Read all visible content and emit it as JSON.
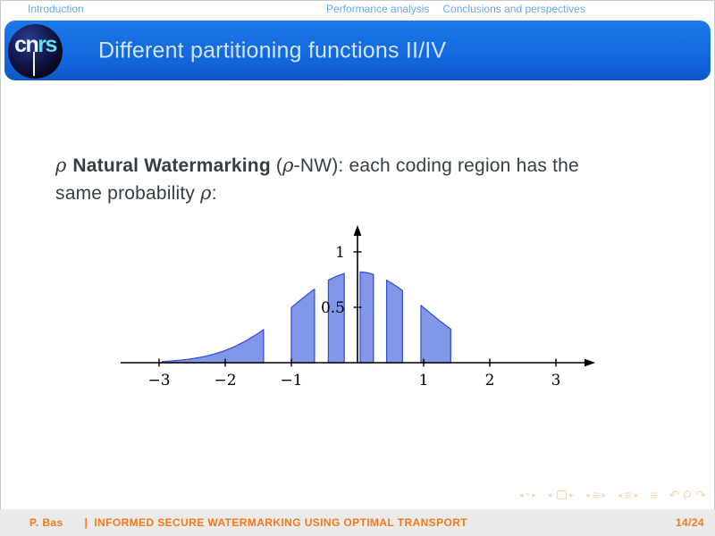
{
  "header": {
    "nav_left": "Introduction",
    "nav_right": [
      "Performance analysis",
      "Conclusions and perspectives"
    ]
  },
  "titlebar": {
    "title": "Different partitioning functions II/IV",
    "logo_parts": [
      "cn",
      "rs"
    ]
  },
  "body": {
    "lines": [
      [
        {
          "t": "ρ ",
          "s": "math"
        },
        {
          "t": "Natural Watermarking",
          "s": "bold"
        },
        {
          "t": " (",
          "s": "plain"
        },
        {
          "t": "ρ",
          "s": "math"
        },
        {
          "t": "-NW): each coding region has the",
          "s": "plain"
        }
      ],
      [
        {
          "t": "same probability ",
          "s": "plain"
        },
        {
          "t": "ρ",
          "s": "math"
        },
        {
          "t": ":",
          "s": "plain"
        }
      ]
    ]
  },
  "chart_data": {
    "type": "area",
    "title": "",
    "xlabel": "",
    "ylabel": "",
    "description": "Gaussian pdf partitioned into coding regions of equal probability; alternating regions shaded blue",
    "curve": {
      "kind": "gaussian",
      "mean": 0,
      "sigma": 1.0,
      "peak": 0.82
    },
    "curve_points": [
      [
        -3,
        0.009
      ],
      [
        -2.5,
        0.036
      ],
      [
        -2,
        0.111
      ],
      [
        -1.5,
        0.266
      ],
      [
        -1,
        0.497
      ],
      [
        -0.5,
        0.724
      ],
      [
        0,
        0.82
      ],
      [
        0.5,
        0.724
      ],
      [
        1,
        0.497
      ],
      [
        1.5,
        0.266
      ],
      [
        2,
        0.111
      ],
      [
        2.5,
        0.036
      ],
      [
        3,
        0.009
      ]
    ],
    "shaded_regions": [
      [
        -2.95,
        -1.42
      ],
      [
        -1.0,
        -0.65
      ],
      [
        -0.44,
        -0.2
      ],
      [
        0.04,
        0.24
      ],
      [
        0.44,
        0.68
      ],
      [
        0.96,
        1.41
      ]
    ],
    "region_edge_heights": [
      [
        0.011,
        0.3
      ],
      [
        0.5,
        0.66
      ],
      [
        0.74,
        0.8
      ],
      [
        0.82,
        0.8
      ],
      [
        0.75,
        0.65
      ],
      [
        0.52,
        0.3
      ]
    ],
    "x_ticks": [
      -3,
      -2,
      -1,
      1,
      2,
      3
    ],
    "y_ticks": [
      0.5,
      1
    ],
    "xlim": [
      -3.55,
      3.55
    ],
    "ylim": [
      0,
      1.25
    ],
    "grid": false,
    "legend": false,
    "fill_color": "#8397e9",
    "stroke_color": "#3a50d4",
    "axis_color": "#000000"
  },
  "nav_symbols": {
    "groups": [
      {
        "name": "slide-nav",
        "items": [
          {
            "icon": "prev-triangle-icon",
            "glyph": "◂"
          },
          {
            "icon": "slide-icon",
            "glyph": "▫"
          },
          {
            "icon": "next-triangle-icon",
            "glyph": "▸"
          }
        ]
      },
      {
        "name": "frame-nav",
        "items": [
          {
            "icon": "prev-triangle-icon",
            "glyph": "◂"
          },
          {
            "icon": "frame-icon",
            "glyph": "",
            "cls": "icon-frame"
          },
          {
            "icon": "next-triangle-icon",
            "glyph": "▸"
          }
        ]
      },
      {
        "name": "section-nav",
        "items": [
          {
            "icon": "prev-triangle-icon",
            "glyph": "◂"
          },
          {
            "icon": "section-icon",
            "glyph": "≡"
          },
          {
            "icon": "next-triangle-icon",
            "glyph": "▸"
          }
        ]
      },
      {
        "name": "subsection-nav",
        "items": [
          {
            "icon": "prev-triangle-icon",
            "glyph": "◂"
          },
          {
            "icon": "subsection-icon",
            "glyph": "≡"
          },
          {
            "icon": "next-triangle-icon",
            "glyph": "▸"
          }
        ]
      },
      {
        "name": "appendix-nav",
        "items": [
          {
            "icon": "appendix-icon",
            "glyph": "≡"
          }
        ]
      },
      {
        "name": "history-nav",
        "items": [
          {
            "icon": "back-arrow-icon",
            "glyph": "↶"
          },
          {
            "icon": "search-icon",
            "glyph": "",
            "cls": "icon-magnifier"
          },
          {
            "icon": "forward-arrow-icon",
            "glyph": "↷"
          }
        ]
      }
    ]
  },
  "footer": {
    "author": "P. Bas",
    "separator": "|",
    "title": "INFORMED SECURE WATERMARKING USING OPTIMAL TRANSPORT",
    "page": "14/24"
  },
  "colors": {
    "titlebar_blue": "#1568e0",
    "title_text": "#d3e4fa",
    "nav_link_blue": "#6aa5e8",
    "footer_orange": "#f87716",
    "footer_bg": "#ebebeb",
    "nav_symbols_orange": "#ffd2a6",
    "region_fill": "#8397e9",
    "region_stroke": "#3a50d4",
    "body_text": "#333f44"
  }
}
